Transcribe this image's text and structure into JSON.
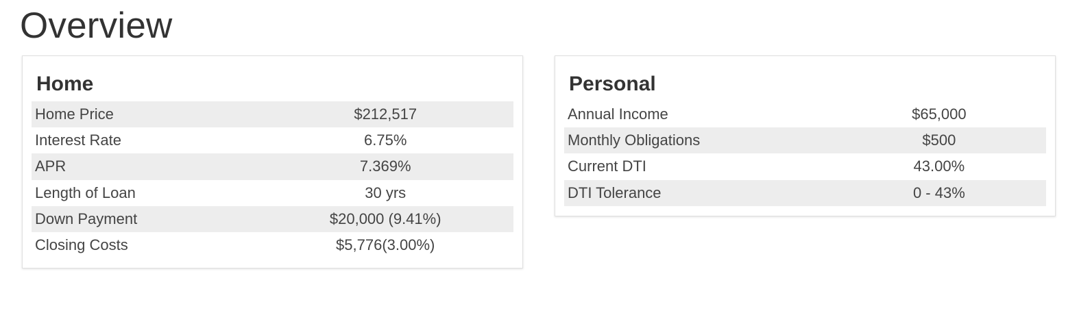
{
  "page": {
    "title": "Overview"
  },
  "home": {
    "title": "Home",
    "rows": [
      {
        "label": "Home Price",
        "value": "$212,517"
      },
      {
        "label": "Interest Rate",
        "value": "6.75%"
      },
      {
        "label": "APR",
        "value": "7.369%"
      },
      {
        "label": "Length of Loan",
        "value": "30 yrs"
      },
      {
        "label": "Down Payment",
        "value": "$20,000 (9.41%)"
      },
      {
        "label": "Closing Costs",
        "value": "$5,776(3.00%)"
      }
    ]
  },
  "personal": {
    "title": "Personal",
    "rows": [
      {
        "label": "Annual Income",
        "value": "$65,000"
      },
      {
        "label": "Monthly Obligations",
        "value": "$500"
      },
      {
        "label": "Current DTI",
        "value": "43.00%"
      },
      {
        "label": "DTI Tolerance",
        "value": "0 - 43%"
      }
    ]
  },
  "colors": {
    "text": "#333333",
    "row_shade": "#ededed",
    "card_border": "#e0e0e0"
  }
}
